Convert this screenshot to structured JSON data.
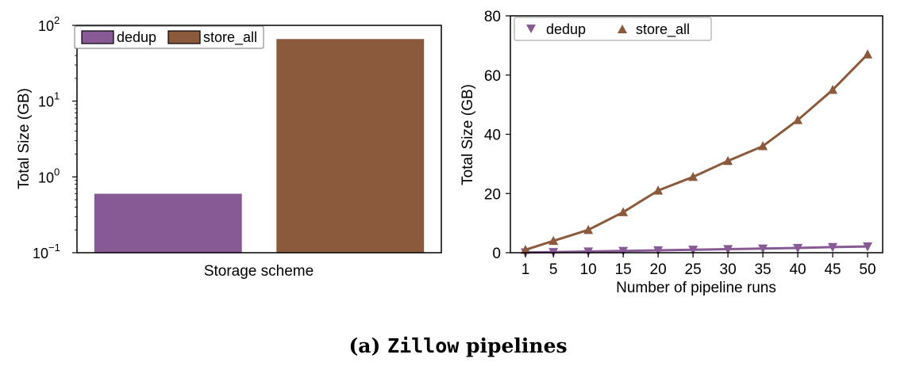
{
  "colors": {
    "dedup": "#875A95",
    "store_all": "#8B5A3C",
    "axis": "#000000"
  },
  "caption": {
    "prefix": "(a) ",
    "mono": "Zillow",
    "suffix": " pipelines"
  },
  "chart_data": [
    {
      "type": "bar",
      "title": "",
      "xlabel": "Storage scheme",
      "ylabel": "Total Size (GB)",
      "yscale": "log",
      "ylim": [
        0.1,
        100
      ],
      "y_ticks": [
        {
          "base": "10",
          "exp": "−1",
          "value": 0.1
        },
        {
          "base": "10",
          "exp": "0",
          "value": 1
        },
        {
          "base": "10",
          "exp": "1",
          "value": 10
        },
        {
          "base": "10",
          "exp": "2",
          "value": 100
        }
      ],
      "categories": [
        "dedup",
        "store_all"
      ],
      "values": [
        0.6,
        66
      ],
      "legend": {
        "placement": "top-left",
        "entries": [
          "dedup",
          "store_all"
        ]
      }
    },
    {
      "type": "line",
      "title": "",
      "xlabel": "Number of pipeline runs",
      "ylabel": "Total Size (GB)",
      "ylim": [
        0,
        80
      ],
      "y_ticks": [
        "0",
        "20",
        "40",
        "60",
        "80"
      ],
      "x": [
        "1",
        "5",
        "10",
        "15",
        "20",
        "25",
        "30",
        "35",
        "40",
        "45",
        "50"
      ],
      "series": [
        {
          "name": "dedup",
          "marker": "triangle-down",
          "values": [
            0.1,
            0.2,
            0.4,
            0.6,
            0.8,
            1.0,
            1.2,
            1.4,
            1.6,
            1.9,
            2.1
          ]
        },
        {
          "name": "store_all",
          "marker": "triangle-up",
          "values": [
            1.0,
            4.0,
            7.7,
            13.7,
            21.0,
            25.6,
            31.0,
            36.0,
            44.8,
            55.0,
            67.0
          ]
        }
      ],
      "legend": {
        "placement": "top-left",
        "entries": [
          "dedup",
          "store_all"
        ]
      }
    }
  ]
}
